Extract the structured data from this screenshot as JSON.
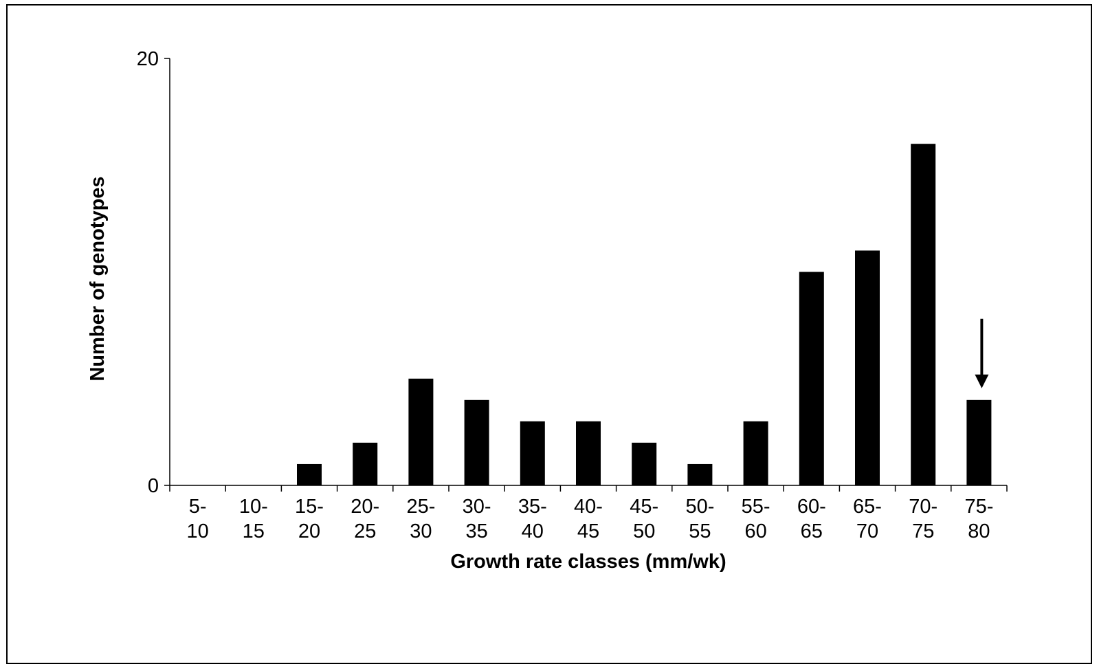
{
  "chart_data": {
    "type": "bar",
    "title": "",
    "xlabel": "Growth rate classes (mm/wk)",
    "ylabel": "Number of genotypes",
    "ylim": [
      0,
      20
    ],
    "yticks": [
      "0",
      "20"
    ],
    "grid": false,
    "legend": "none",
    "categories": [
      "5-10",
      "10-15",
      "15-20",
      "20-25",
      "25-30",
      "30-35",
      "35-40",
      "40-45",
      "45-50",
      "50-55",
      "55-60",
      "60-65",
      "65-70",
      "70-75",
      "75-80"
    ],
    "category_lines": [
      [
        "5-",
        "10"
      ],
      [
        "10-",
        "15"
      ],
      [
        "15-",
        "20"
      ],
      [
        "20-",
        "25"
      ],
      [
        "25-",
        "30"
      ],
      [
        "30-",
        "35"
      ],
      [
        "35-",
        "40"
      ],
      [
        "40-",
        "45"
      ],
      [
        "45-",
        "50"
      ],
      [
        "50-",
        "55"
      ],
      [
        "55-",
        "60"
      ],
      [
        "60-",
        "65"
      ],
      [
        "65-",
        "70"
      ],
      [
        "70-",
        "75"
      ],
      [
        "75-",
        "80"
      ]
    ],
    "values": [
      0,
      0,
      1,
      2,
      5,
      4,
      3,
      3,
      2,
      1,
      3,
      10,
      11,
      16,
      4
    ],
    "bar_color": "#000000",
    "annotation": {
      "type": "arrow",
      "direction": "down",
      "category": "75-80",
      "color": "#000000"
    }
  }
}
